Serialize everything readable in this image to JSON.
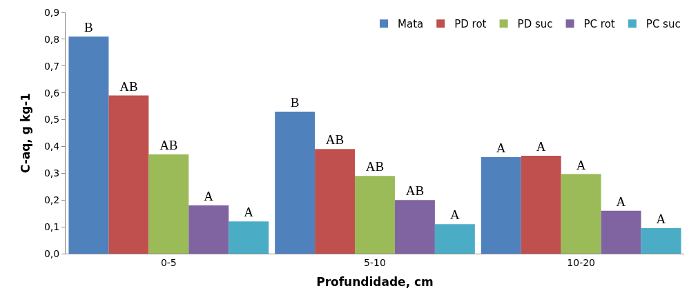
{
  "chart_data": {
    "type": "bar",
    "xlabel": "Profundidade, cm",
    "ylabel": "C-aq, g kg-1",
    "categories": [
      "0-5",
      "5-10",
      "10-20"
    ],
    "series": [
      {
        "name": "Mata",
        "color": "#4f81bd",
        "values": [
          0.81,
          0.53,
          0.36
        ],
        "value_labels": [
          "B",
          "B",
          "A"
        ]
      },
      {
        "name": "PD rot",
        "color": "#c0504d",
        "values": [
          0.59,
          0.39,
          0.365
        ],
        "value_labels": [
          "AB",
          "AB",
          "A"
        ]
      },
      {
        "name": "PD suc",
        "color": "#9bbb59",
        "values": [
          0.37,
          0.29,
          0.297
        ],
        "value_labels": [
          "AB",
          "AB",
          "A"
        ]
      },
      {
        "name": "PC rot",
        "color": "#8064a2",
        "values": [
          0.18,
          0.2,
          0.16
        ],
        "value_labels": [
          "A",
          "AB",
          "A"
        ]
      },
      {
        "name": "PC suc",
        "color": "#4bacc6",
        "values": [
          0.12,
          0.11,
          0.095
        ],
        "value_labels": [
          "A",
          "A",
          "A"
        ]
      }
    ],
    "ylim": [
      0,
      0.9
    ],
    "yticks": [
      {
        "value": 0,
        "label": "0,0"
      },
      {
        "value": 0.1,
        "label": "0,1"
      },
      {
        "value": 0.2,
        "label": "0,2"
      },
      {
        "value": 0.3,
        "label": "0,3"
      },
      {
        "value": 0.4,
        "label": "0,4"
      },
      {
        "value": 0.5,
        "label": "0,5"
      },
      {
        "value": 0.6,
        "label": "0,6"
      },
      {
        "value": 0.7,
        "label": "0,7"
      },
      {
        "value": 0.8,
        "label": "0,8"
      },
      {
        "value": 0.9,
        "label": "0,9"
      }
    ],
    "legend": "top right"
  }
}
